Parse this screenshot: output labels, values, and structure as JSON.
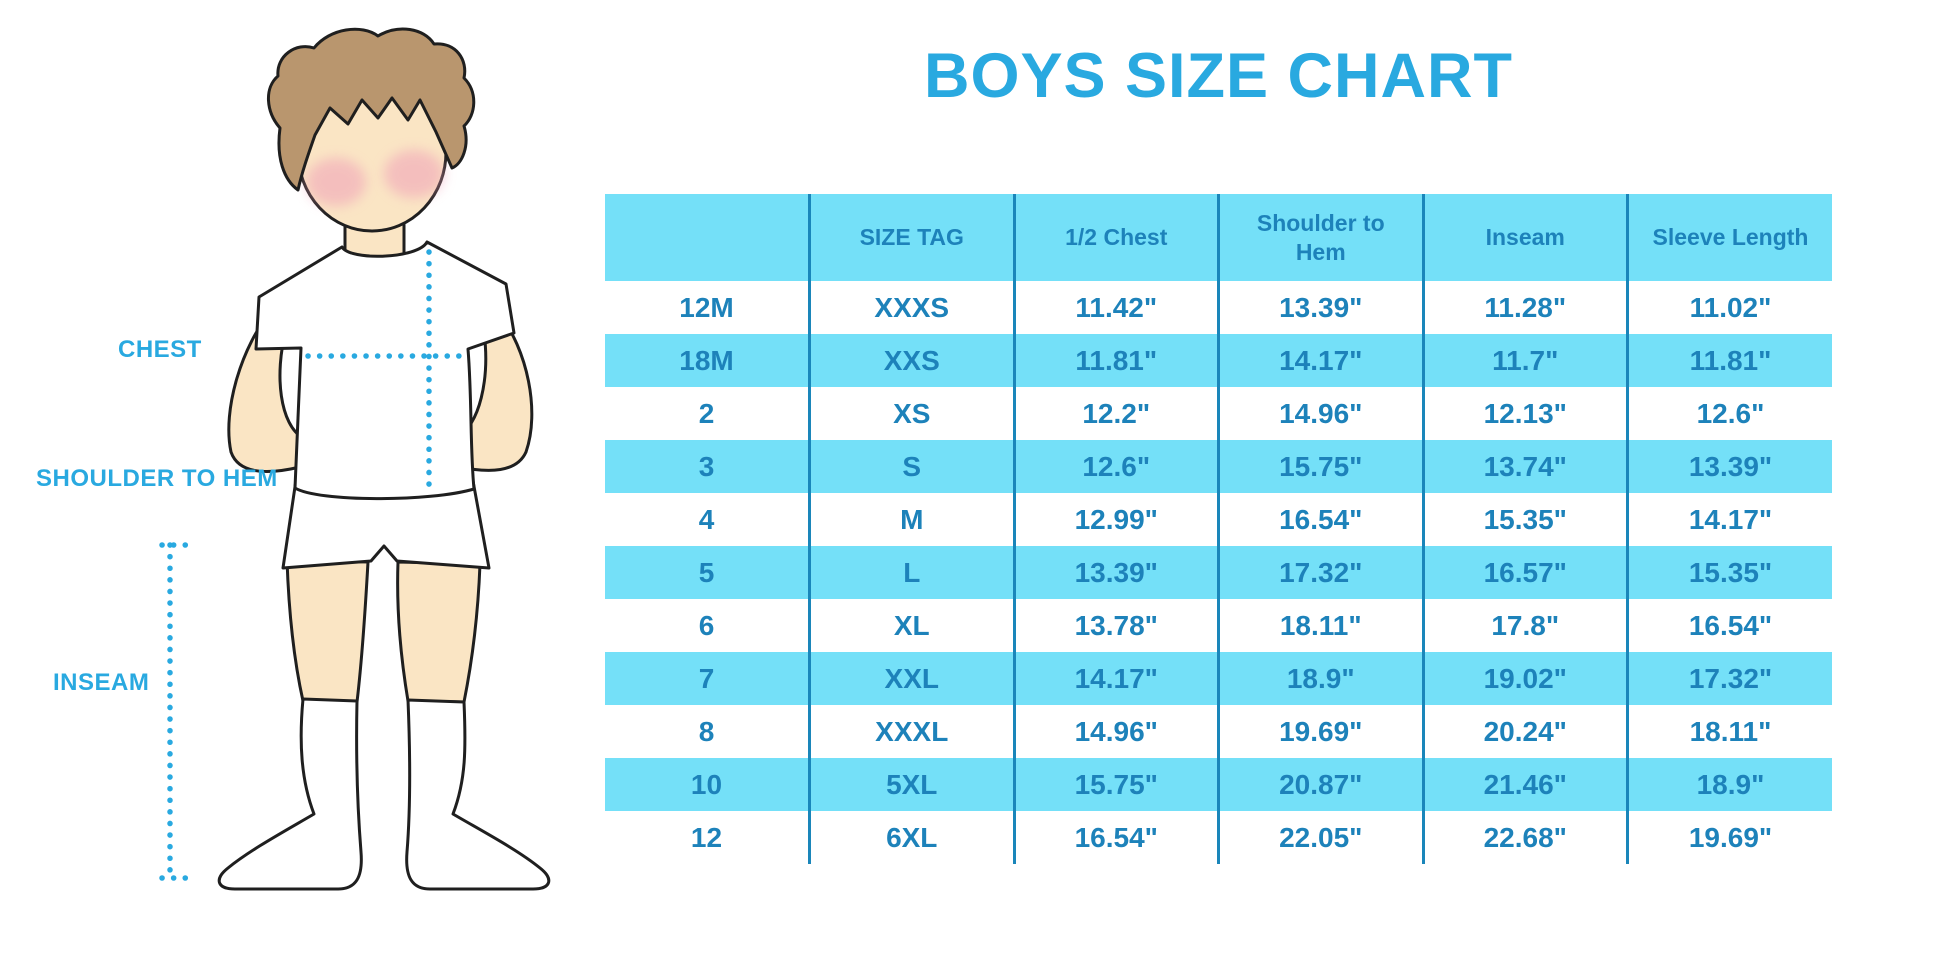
{
  "title": "BOYS SIZE CHART",
  "figure": {
    "labels": {
      "chest": "CHEST",
      "shoulder_to_hem": "SHOULDER TO HEM",
      "inseam": "INSEAM"
    }
  },
  "chart_data": {
    "type": "table",
    "title": "BOYS SIZE CHART",
    "columns": [
      "",
      "SIZE TAG",
      "1/2 Chest",
      "Shoulder to Hem",
      "Inseam",
      "Sleeve Length"
    ],
    "rows": [
      [
        "12M",
        "XXXS",
        "11.42\"",
        "13.39\"",
        "11.28\"",
        "11.02\""
      ],
      [
        "18M",
        "XXS",
        "11.81\"",
        "14.17\"",
        "11.7\"",
        "11.81\""
      ],
      [
        "2",
        "XS",
        "12.2\"",
        "14.96\"",
        "12.13\"",
        "12.6\""
      ],
      [
        "3",
        "S",
        "12.6\"",
        "15.75\"",
        "13.74\"",
        "13.39\""
      ],
      [
        "4",
        "M",
        "12.99\"",
        "16.54\"",
        "15.35\"",
        "14.17\""
      ],
      [
        "5",
        "L",
        "13.39\"",
        "17.32\"",
        "16.57\"",
        "15.35\""
      ],
      [
        "6",
        "XL",
        "13.78\"",
        "18.11\"",
        "17.8\"",
        "16.54\""
      ],
      [
        "7",
        "XXL",
        "14.17\"",
        "18.9\"",
        "19.02\"",
        "17.32\""
      ],
      [
        "8",
        "XXXL",
        "14.96\"",
        "19.69\"",
        "20.24\"",
        "18.11\""
      ],
      [
        "10",
        "5XL",
        "15.75\"",
        "20.87\"",
        "21.46\"",
        "18.9\""
      ],
      [
        "12",
        "6XL",
        "16.54\"",
        "22.05\"",
        "22.68\"",
        "19.69\""
      ]
    ],
    "layout": {
      "row_stripe_colors": [
        "#ffffff",
        "#74e0f8"
      ],
      "header_color": "#74e0f8",
      "grid": "vertical-only"
    }
  },
  "colors": {
    "accent_blue": "#29a9e0",
    "table_text": "#1d82ba",
    "table_stripe": "#74e0f8",
    "divider": "#1a86ba",
    "skin": "#fae5c4",
    "hair": "#b9966e",
    "blush": "#f0a0b8",
    "outline": "#1f1f1f"
  }
}
